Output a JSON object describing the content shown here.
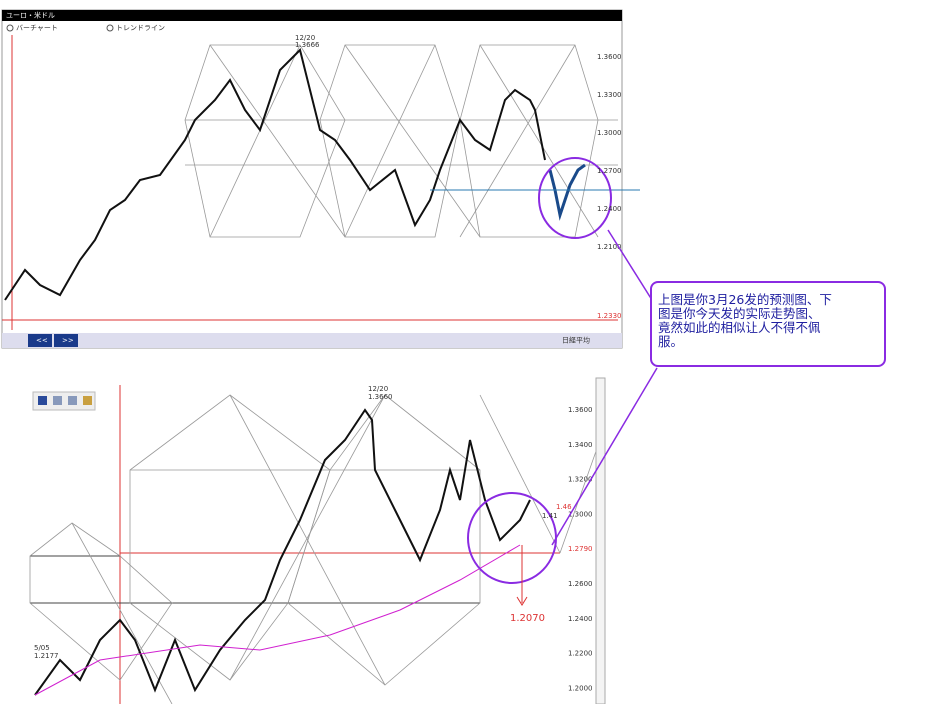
{
  "top_chart": {
    "title": "ユーロ・米ドル",
    "options": [
      "バーチャート",
      "トレンドライン"
    ],
    "price_labels": [
      "1.3600",
      "1.3300",
      "1.3000",
      "1.2700",
      "1.2400",
      "1.2100",
      "1.2330"
    ],
    "annotations": [
      "12/20",
      "1.3666"
    ],
    "footer": [
      "<<",
      ">>",
      "日経平均"
    ]
  },
  "bottom_chart": {
    "price_labels": [
      "1.3600",
      "1.3400",
      "1.3200",
      "1.3000",
      "1.2790",
      "1.2600",
      "1.2400",
      "1.2200",
      "1.2000"
    ],
    "annotations": [
      "12/20",
      "1.3660",
      "5/05",
      "1.2177",
      "1.46",
      "1.41"
    ],
    "target": "1.2070"
  },
  "note": {
    "lines": [
      "上图是你3月26发的预测图、下",
      "图是你今天发的实际走势图、",
      "竟然如此的相似让人不得不佩",
      "服。"
    ]
  }
}
